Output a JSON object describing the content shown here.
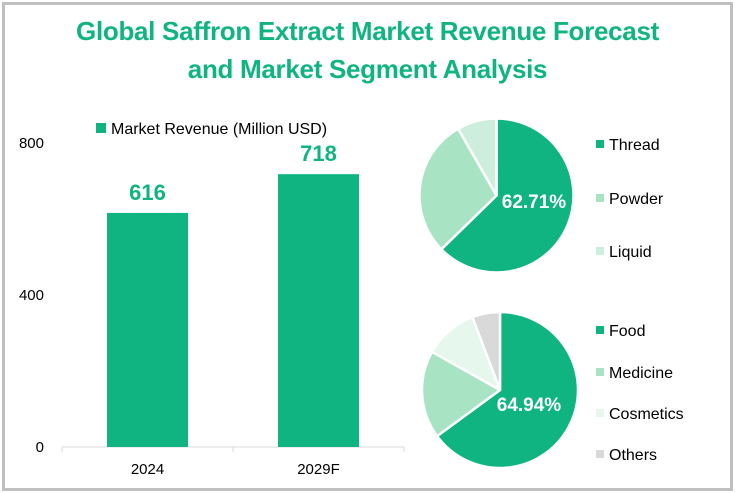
{
  "title_line1": "Global Saffron Extract Market Revenue Forecast",
  "title_line2": "and Market Segment Analysis",
  "colors": {
    "accent": "#10b481",
    "light_green": "#a8e3c3",
    "pale_green": "#cdeedc",
    "very_pale_green": "#e6f7ee",
    "gray": "#d9d9d9",
    "axis": "#d9d9d9",
    "border": "#bfbfbf"
  },
  "chart_data": [
    {
      "type": "bar",
      "title": "",
      "legend": [
        "Market Revenue (Million USD)"
      ],
      "legend_position": "top",
      "categories": [
        "2024",
        "2029F"
      ],
      "values": [
        616,
        718
      ],
      "data_labels": [
        "616",
        "718"
      ],
      "xlabel": "",
      "ylabel": "",
      "ylim": [
        0,
        800
      ],
      "yticks": [
        0,
        400,
        800
      ],
      "ytick_labels": [
        "0",
        "400",
        "800"
      ],
      "grid": false
    },
    {
      "type": "pie",
      "title": "",
      "labels": [
        "Thread",
        "Powder",
        "Liquid"
      ],
      "values": [
        62.71,
        29.0,
        8.29
      ],
      "colors": [
        "#10b481",
        "#a8e3c3",
        "#cdeedc"
      ],
      "data_labels": [
        "62.71%"
      ],
      "legend_position": "right"
    },
    {
      "type": "pie",
      "title": "",
      "labels": [
        "Food",
        "Medicine",
        "Cosmetics",
        "Others"
      ],
      "values": [
        64.94,
        18.2,
        11.1,
        5.76
      ],
      "colors": [
        "#10b481",
        "#a8e3c3",
        "#e6f7ee",
        "#d9d9d9"
      ],
      "data_labels": [
        "64.94%"
      ],
      "legend_position": "right"
    }
  ]
}
